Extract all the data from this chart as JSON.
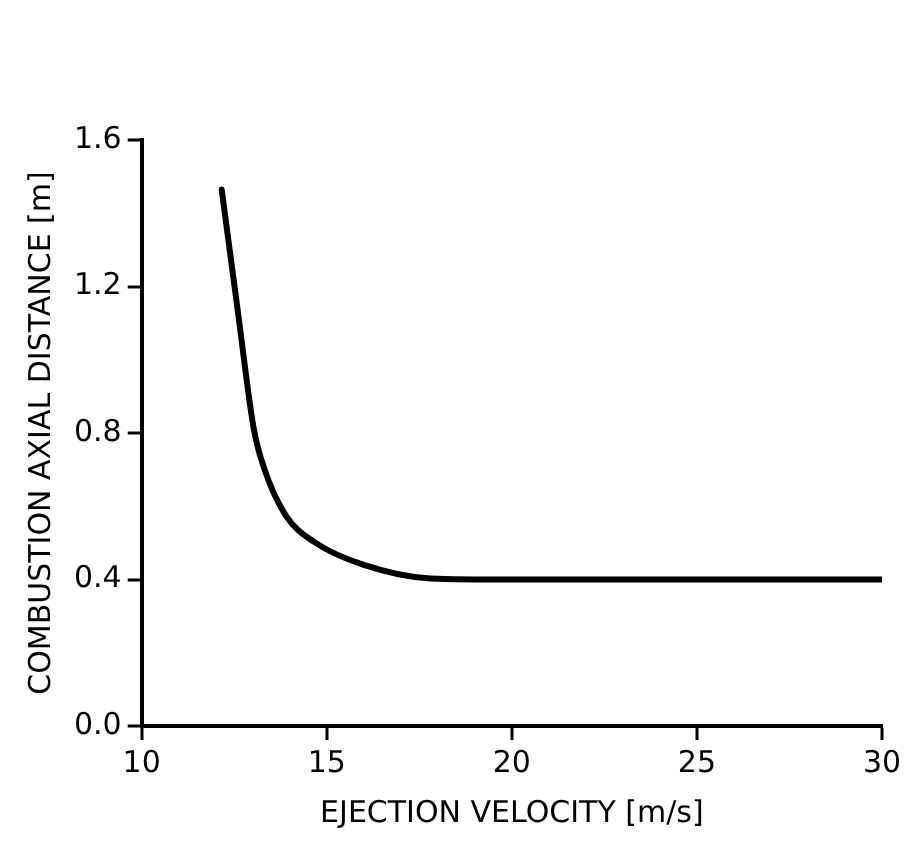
{
  "chart_data": {
    "type": "line",
    "xlabel": "EJECTION VELOCITY [m/s]",
    "ylabel": "COMBUSTION AXIAL DISTANCE [m]",
    "x": [
      12.16,
      12.6,
      13.03,
      13.32,
      13.9,
      14.7,
      16.0,
      17.8,
      20,
      25,
      30
    ],
    "series": [
      {
        "color": "#000000",
        "values": [
          1.465,
          1.13,
          0.81,
          0.7,
          0.574,
          0.5,
          0.44,
          0.403,
          0.4,
          0.4,
          0.4
        ]
      }
    ],
    "xlim": [
      10,
      30
    ],
    "xticks": [
      10,
      15,
      20,
      25,
      30
    ],
    "ylim": [
      0,
      1.6
    ],
    "yticks": [
      {
        "value": 0,
        "label": "0.0"
      },
      0.4,
      0.8,
      1.2,
      1.6
    ],
    "grid": false,
    "legend": false,
    "marker": "none",
    "line_style": "solid"
  }
}
